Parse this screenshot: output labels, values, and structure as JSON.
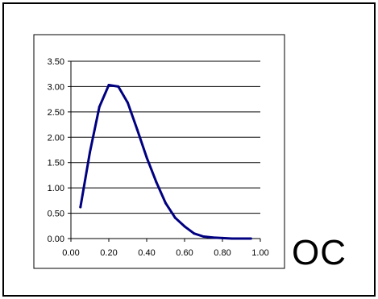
{
  "corner_label": "OC",
  "colors": {
    "line": "#000080",
    "grid": "#000000",
    "frame": "#000000",
    "plot_background": "#ffffff"
  },
  "chart_data": {
    "type": "line",
    "title": "",
    "xlabel": "",
    "ylabel": "",
    "grid": "horizontal",
    "legend": "none",
    "xlim": [
      0.0,
      1.0
    ],
    "ylim": [
      0.0,
      3.5
    ],
    "x_ticks": [
      "0.00",
      "0.20",
      "0.40",
      "0.60",
      "0.80",
      "1.00"
    ],
    "x_tick_values": [
      0.0,
      0.2,
      0.4,
      0.6,
      0.8,
      1.0
    ],
    "y_ticks": [
      "0.00",
      "0.50",
      "1.00",
      "1.50",
      "2.00",
      "2.50",
      "3.00",
      "3.50"
    ],
    "y_tick_values": [
      0.0,
      0.5,
      1.0,
      1.5,
      2.0,
      2.5,
      3.0,
      3.5
    ],
    "series": [
      {
        "x": [
          0.05,
          0.1,
          0.15,
          0.2,
          0.25,
          0.3,
          0.35,
          0.4,
          0.45,
          0.5,
          0.55,
          0.6,
          0.65,
          0.7,
          0.75,
          0.8,
          0.85,
          0.9,
          0.95
        ],
        "values": [
          0.62,
          1.7,
          2.6,
          3.03,
          3.0,
          2.68,
          2.15,
          1.6,
          1.12,
          0.7,
          0.41,
          0.24,
          0.1,
          0.04,
          0.02,
          0.01,
          0.0,
          0.0,
          0.0
        ]
      }
    ]
  }
}
